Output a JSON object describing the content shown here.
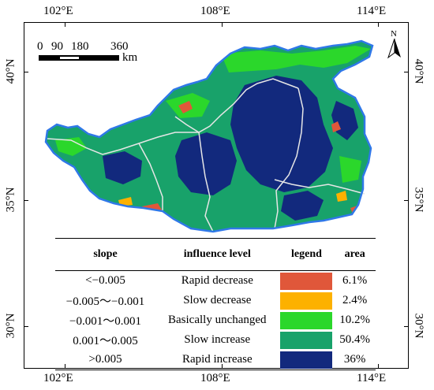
{
  "axes": {
    "lon_top": [
      "102°E",
      "108°E",
      "114°E"
    ],
    "lon_bottom": [
      "102°E",
      "108°E",
      "114°E"
    ],
    "lat_left": [
      "40°N",
      "35°N",
      "30°N"
    ],
    "lat_right": [
      "40°N",
      "35°N",
      "30°N"
    ]
  },
  "scalebar": {
    "ticks": [
      "0",
      "90",
      "180",
      "360"
    ],
    "unit": "km"
  },
  "north_arrow": {
    "label": "N",
    "icon": "north-arrow-icon"
  },
  "legend": {
    "headers": {
      "slope": "slope",
      "influence": "influence level",
      "legend": "legend",
      "area": "area"
    },
    "rows": [
      {
        "slope": "<−0.005",
        "level": "Rapid decrease",
        "color": "#e0573a",
        "area": "6.1%"
      },
      {
        "slope": "−0.005～−0.001",
        "level": "Slow decrease",
        "color": "#fdb100",
        "area": "2.4%"
      },
      {
        "slope": "−0.001～0.001",
        "level": "Basically unchanged",
        "color": "#2bd72b",
        "area": "10.2%"
      },
      {
        "slope": "0.001～0.005",
        "level": "Slow increase",
        "color": "#18a26a",
        "area": "50.4%"
      },
      {
        "slope": ">0.005",
        "level": "Rapid increase",
        "color": "#12297d",
        "area": "36%"
      }
    ]
  },
  "colors": {
    "boundary": "#2f78e8",
    "province_lines": "#e6e6e6"
  }
}
